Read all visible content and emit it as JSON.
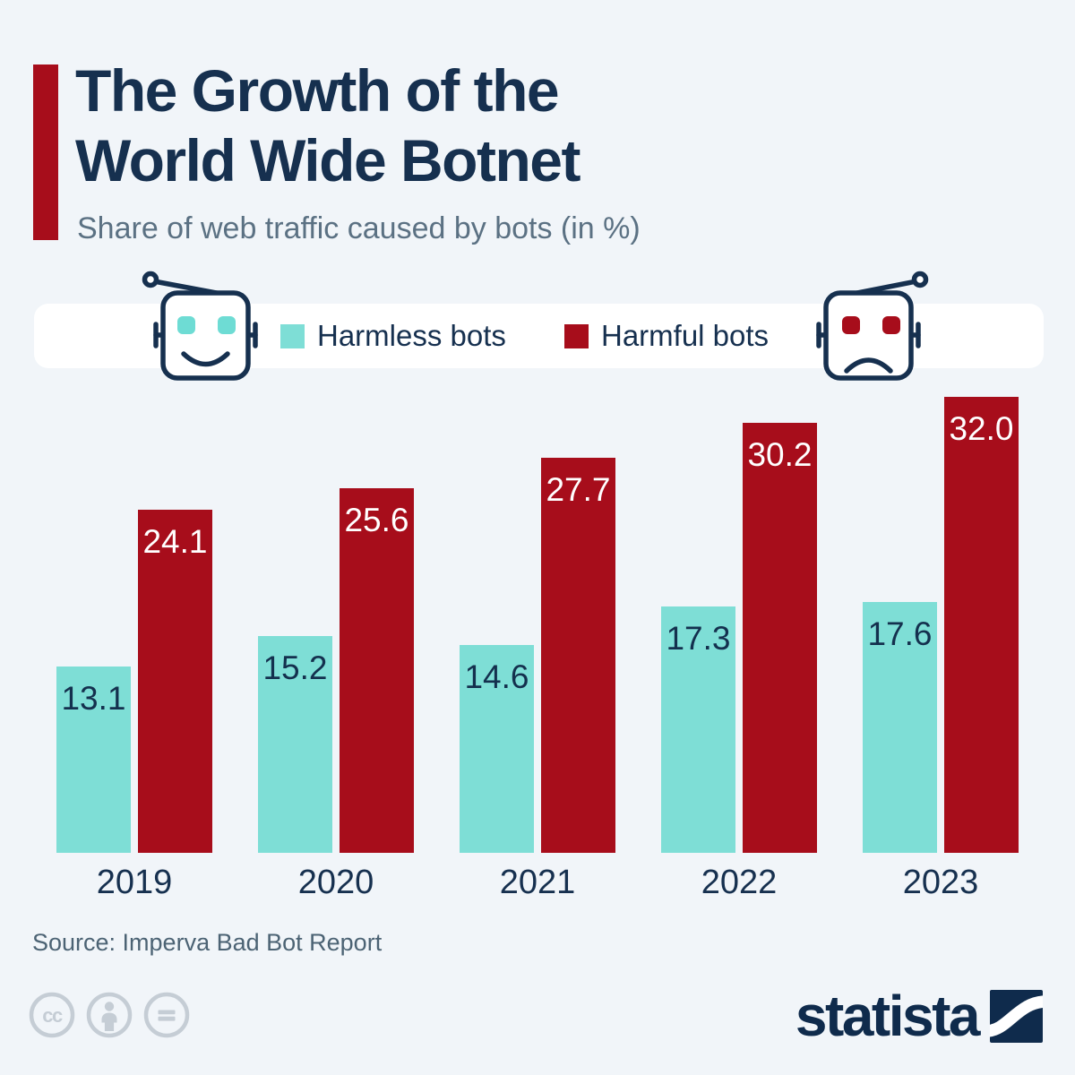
{
  "infographic": {
    "title_lines": [
      "The Growth of the",
      "World Wide Botnet"
    ],
    "subtitle": "Share of web traffic caused by bots (in %)",
    "source": "Source: Imperva Bad Bot Report",
    "brand": "statista"
  },
  "legend": {
    "items": [
      {
        "label": "Harmless bots",
        "color": "#7EDED6"
      },
      {
        "label": "Harmful bots",
        "color": "#A70D1B"
      }
    ]
  },
  "icons": {
    "left": "happy-robot-icon",
    "right": "sad-robot-icon",
    "license": [
      "cc-icon",
      "attribution-person-icon",
      "no-derivatives-equals-icon"
    ],
    "logo": "statista-logo"
  },
  "colors": {
    "background": "#F1F5F9",
    "band": "#FFFFFF",
    "navy_text": "#16304F",
    "subtitle_text": "#5B7183",
    "accent_red": "#A70D1B",
    "harmless_teal": "#7EDED6",
    "license_gray": "#C5CDD5",
    "logo_navy": "#0F2B4C"
  },
  "chart_data": {
    "type": "bar",
    "title": "The Growth of the World Wide Botnet",
    "subtitle": "Share of web traffic caused by bots (in %)",
    "categories": [
      "2019",
      "2020",
      "2021",
      "2022",
      "2023"
    ],
    "series": [
      {
        "name": "Harmless bots",
        "color": "#7EDED6",
        "label_color": "#14304E",
        "values": [
          13.1,
          15.2,
          14.6,
          17.3,
          17.6
        ]
      },
      {
        "name": "Harmful bots",
        "color": "#A70D1B",
        "label_color": "#FFFFFF",
        "values": [
          24.1,
          25.6,
          27.7,
          30.2,
          32.0
        ]
      }
    ],
    "unit": "%",
    "ylim": [
      0,
      32.0
    ],
    "grid": false,
    "legend_position": "top",
    "value_labels": "inside-top"
  }
}
